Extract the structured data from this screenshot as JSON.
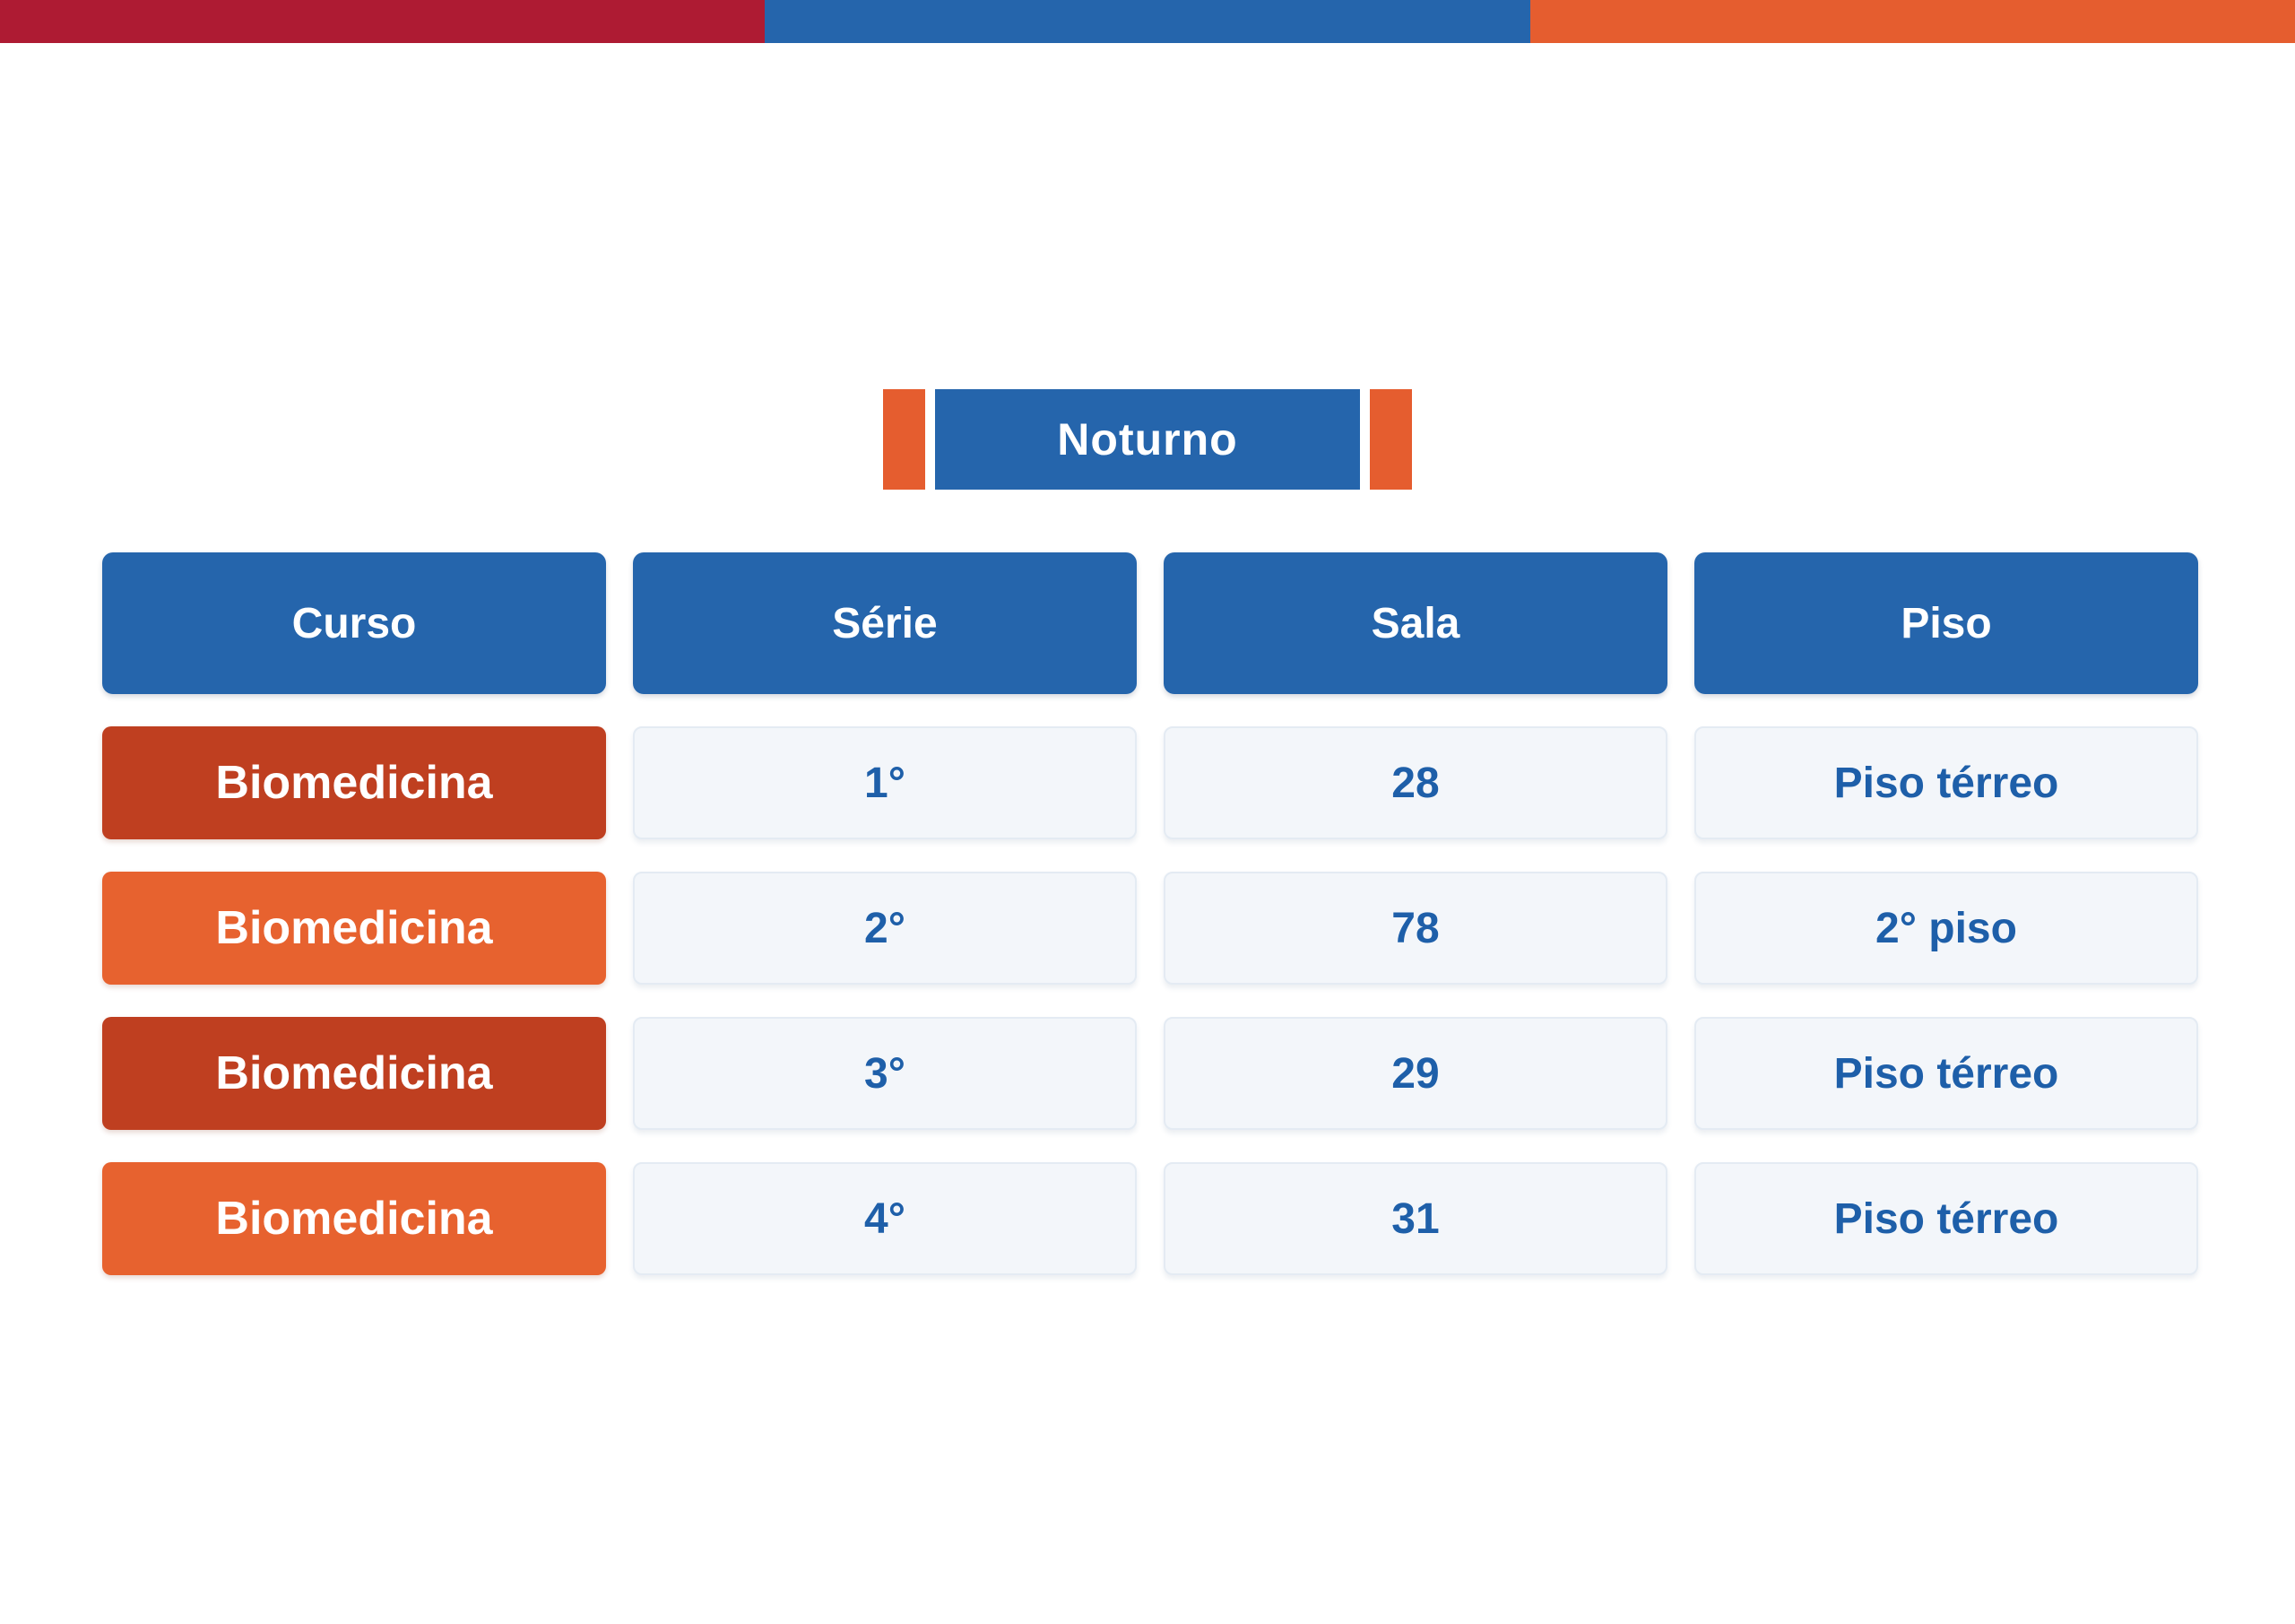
{
  "title_badge": {
    "label": "Noturno"
  },
  "colors": {
    "topbar_red": "#AE1B33",
    "topbar_blue": "#2565AC",
    "topbar_orange": "#E55D2F",
    "header_blue": "#2565AC",
    "row_dark_orange": "#BF3F20",
    "row_bright_orange": "#E7622F",
    "cell_bg": "#F3F6FA",
    "cell_border": "#E4EBF3",
    "cell_text_blue": "#1E5FA9",
    "badge_accent_orange": "#E55D2F"
  },
  "table": {
    "headers": [
      "Curso",
      "Série",
      "Sala",
      "Piso"
    ],
    "rows": [
      {
        "curso": "Biomedicina",
        "serie": "1°",
        "sala": "28",
        "piso": "Piso térreo",
        "curso_bg": "#BF3F20"
      },
      {
        "curso": "Biomedicina",
        "serie": "2°",
        "sala": "78",
        "piso": "2° piso",
        "curso_bg": "#E7622F"
      },
      {
        "curso": "Biomedicina",
        "serie": "3°",
        "sala": "29",
        "piso": "Piso térreo",
        "curso_bg": "#BF3F20"
      },
      {
        "curso": "Biomedicina",
        "serie": "4°",
        "sala": "31",
        "piso": "Piso térreo",
        "curso_bg": "#E7622F"
      }
    ]
  }
}
